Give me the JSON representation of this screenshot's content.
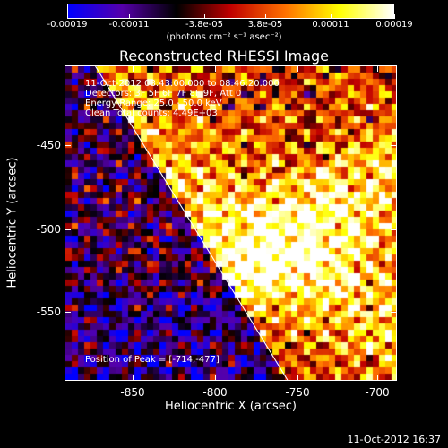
{
  "colorbar": {
    "ticks": [
      "-0.00019",
      "-0.00011",
      "-3.8e-05",
      "3.8e-05",
      "0.00011",
      "0.00019"
    ],
    "unit": "(photons cm⁻² s⁻¹ asec⁻²)"
  },
  "plot": {
    "title": "Reconstructed RHESSI Image",
    "info": [
      "11-Oct-2012 08:43:00.000 to 08:46:20.000",
      "Detectors: 3F 5F 6F 7F 8F 9F, Att 0",
      "Energy Range: 25.0 - 50.0 keV",
      "Clean    Total counts: 4.49E+03"
    ],
    "peak": "Position of Peak = [-714,-477]",
    "xlabel": "Heliocentric X (arcsec)",
    "ylabel": "Heliocentric Y (arcsec)",
    "xticks": [
      "-850",
      "-800",
      "-750",
      "-700"
    ],
    "yticks": [
      "-450",
      "-500",
      "-550"
    ]
  },
  "chart_data": {
    "type": "heatmap",
    "title": "Reconstructed RHESSI Image",
    "xlabel": "Heliocentric X (arcsec)",
    "ylabel": "Heliocentric Y (arcsec)",
    "xlim": [
      -890,
      -692
    ],
    "ylim": [
      -595,
      -410
    ],
    "color_range": [
      -0.00019,
      0.00019
    ],
    "colormap_stops": [
      "#0000ff",
      "#5500aa",
      "#000000",
      "#c00000",
      "#ff7000",
      "#ffff00",
      "#ffffff"
    ],
    "peak_position": [
      -714,
      -477
    ],
    "limb": [
      [
        -872,
        -410
      ],
      [
        -757,
        -595
      ]
    ]
  },
  "timestamp": "11-Oct-2012 16:37"
}
